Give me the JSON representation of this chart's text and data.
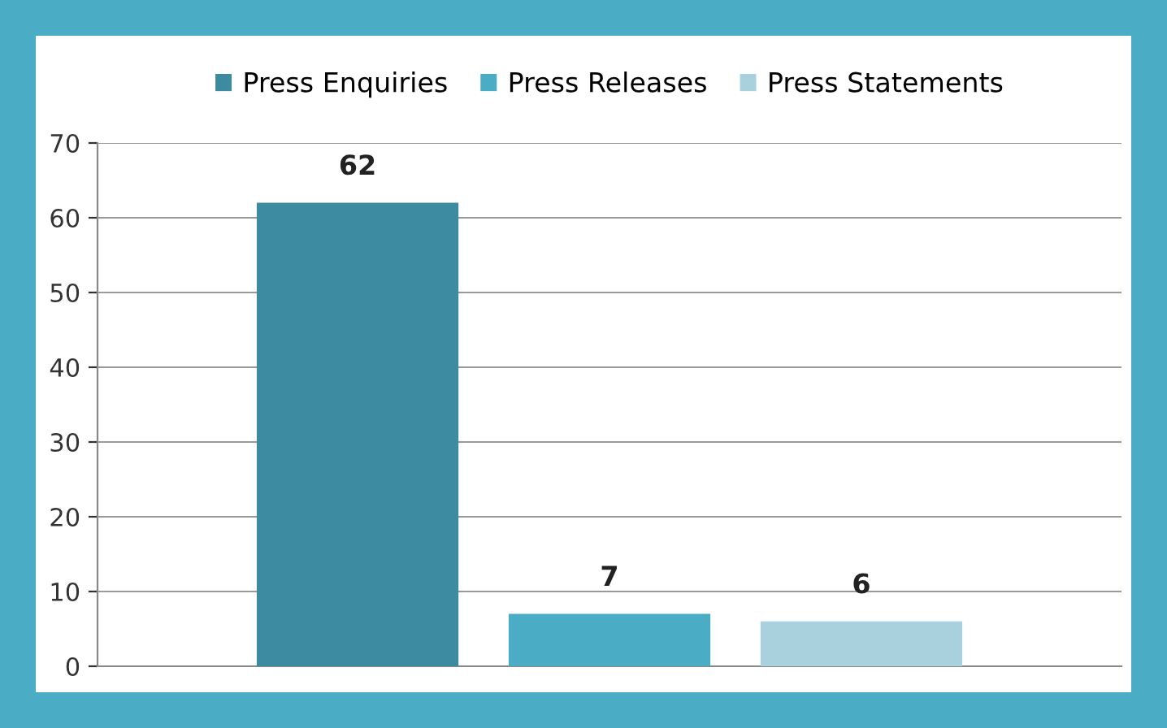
{
  "chart_data": {
    "type": "bar",
    "categories": [
      null
    ],
    "series": [
      {
        "name": "Press Enquiries",
        "color": "#3d8ba0",
        "values": [
          62
        ]
      },
      {
        "name": "Press Releases",
        "color": "#4bacc6",
        "values": [
          7
        ]
      },
      {
        "name": "Press Statements",
        "color": "#a9d0dd",
        "values": [
          6
        ]
      }
    ],
    "ylim": [
      0,
      70
    ],
    "yticks": [
      0,
      10,
      20,
      30,
      40,
      50,
      60,
      70
    ],
    "grid": "y",
    "legend": "top",
    "data_labels": true
  }
}
